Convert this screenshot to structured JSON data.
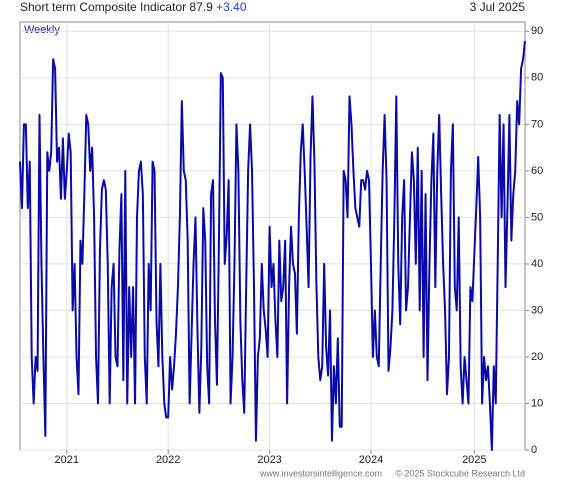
{
  "chart_data": {
    "type": "line",
    "title": "Short term Composite Indicator",
    "latest": "87.9",
    "change": "+3.40",
    "date": "3 Jul 2025",
    "frequency": "Weekly",
    "source": "www.investorsintelligence.com",
    "copyright": "© 2025 Stockcube Research Ltd",
    "categories": [
      null,
      null,
      null,
      null,
      null,
      null,
      null,
      null,
      null,
      null,
      null,
      null,
      null,
      null,
      null,
      null,
      null,
      null,
      null,
      null,
      null,
      null,
      null,
      null,
      "2021",
      null,
      null,
      null,
      null,
      null,
      null,
      null,
      null,
      null,
      null,
      null,
      null,
      null,
      null,
      null,
      null,
      null,
      null,
      null,
      null,
      null,
      null,
      null,
      null,
      null,
      null,
      null,
      null,
      null,
      null,
      null,
      null,
      null,
      null,
      null,
      null,
      null,
      null,
      null,
      null,
      null,
      null,
      null,
      null,
      null,
      null,
      null,
      null,
      null,
      null,
      null,
      "2022",
      null,
      null,
      null,
      null,
      null,
      null,
      null,
      null,
      null,
      null,
      null,
      null,
      null,
      null,
      null,
      null,
      null,
      null,
      null,
      null,
      null,
      null,
      null,
      null,
      null,
      null,
      null,
      null,
      null,
      null,
      null,
      null,
      null,
      null,
      null,
      null,
      null,
      null,
      null,
      null,
      null,
      null,
      null,
      null,
      null,
      null,
      null,
      null,
      null,
      null,
      null,
      "2023",
      null,
      null,
      null,
      null,
      null,
      null,
      null,
      null,
      null,
      null,
      null,
      null,
      null,
      null,
      null,
      null,
      null,
      null,
      null,
      null,
      null,
      null,
      null,
      null,
      null,
      null,
      null,
      null,
      null,
      null,
      null,
      null,
      null,
      null,
      null,
      null,
      null,
      null,
      null,
      null,
      null,
      null,
      null,
      null,
      null,
      null,
      null,
      null,
      null,
      null,
      null,
      "2024",
      null,
      null,
      null,
      null,
      null,
      null,
      null,
      null,
      null,
      null,
      null,
      null,
      null,
      null,
      null,
      null,
      null,
      null,
      null,
      null,
      null,
      null,
      null,
      null,
      null,
      null,
      null,
      null,
      null,
      null,
      null,
      null,
      null,
      null,
      null,
      null,
      null,
      null,
      null,
      null,
      null,
      null,
      null,
      null,
      null,
      null,
      null,
      null,
      null,
      null,
      null,
      null,
      "2025",
      null,
      null,
      null,
      null,
      null,
      null,
      null,
      null,
      null,
      null,
      null,
      null,
      null,
      null,
      null,
      null,
      null,
      null,
      null,
      null,
      null,
      null,
      null,
      null,
      null,
      null
    ],
    "series": [
      {
        "name": "Short term Composite Indicator",
        "color": "#0a0aa8",
        "values": [
          62,
          52,
          70,
          70,
          52,
          62,
          20,
          10,
          20,
          17,
          72,
          40,
          20,
          3,
          64,
          60,
          64,
          84,
          82,
          62,
          65,
          54,
          67,
          54,
          60,
          68,
          64,
          30,
          40,
          20,
          12,
          45,
          40,
          55,
          72,
          70,
          60,
          65,
          50,
          20,
          10,
          43,
          56,
          58,
          56,
          40,
          10,
          35,
          40,
          20,
          18,
          43,
          55,
          15,
          60,
          10,
          35,
          20,
          35,
          10,
          50,
          60,
          62,
          55,
          20,
          10,
          40,
          30,
          62,
          60,
          28,
          18,
          40,
          20,
          10,
          7,
          7,
          20,
          13,
          18,
          25,
          35,
          50,
          75,
          60,
          58,
          45,
          10,
          25,
          40,
          50,
          26,
          8,
          22,
          52,
          45,
          18,
          10,
          55,
          58,
          28,
          14,
          44,
          81,
          80,
          40,
          46,
          58,
          10,
          20,
          40,
          70,
          60,
          28,
          15,
          8,
          35,
          60,
          70,
          60,
          35,
          2,
          20,
          24,
          40,
          30,
          26,
          20,
          48,
          35,
          40,
          28,
          20,
          45,
          32,
          35,
          45,
          10,
          35,
          48,
          40,
          38,
          25,
          50,
          64,
          70,
          60,
          48,
          35,
          63,
          76,
          62,
          36,
          20,
          15,
          18,
          40,
          22,
          16,
          30,
          2,
          18,
          10,
          24,
          5,
          5,
          60,
          58,
          50,
          76,
          70,
          60,
          52,
          50,
          48,
          58,
          58,
          56,
          60,
          58,
          40,
          20,
          30,
          20,
          18,
          40,
          60,
          72,
          58,
          17,
          22,
          30,
          50,
          76,
          40,
          27,
          50,
          58,
          30,
          35,
          50,
          64,
          58,
          40,
          65,
          30,
          60,
          20,
          55,
          15,
          40,
          58,
          68,
          35,
          60,
          72,
          55,
          40,
          30,
          12,
          20,
          60,
          70,
          35,
          30,
          50,
          18,
          10,
          20,
          15,
          10,
          35,
          32,
          42,
          52,
          63,
          50,
          10,
          20,
          15,
          18,
          10,
          0,
          18,
          10,
          40,
          72,
          50,
          70,
          35,
          52,
          72,
          45,
          55,
          60,
          75,
          70,
          82,
          84,
          87.9
        ]
      }
    ],
    "ylim": [
      0,
      92
    ],
    "yticks": [
      0,
      10,
      20,
      30,
      40,
      50,
      60,
      70,
      80,
      90
    ],
    "grid": true
  }
}
